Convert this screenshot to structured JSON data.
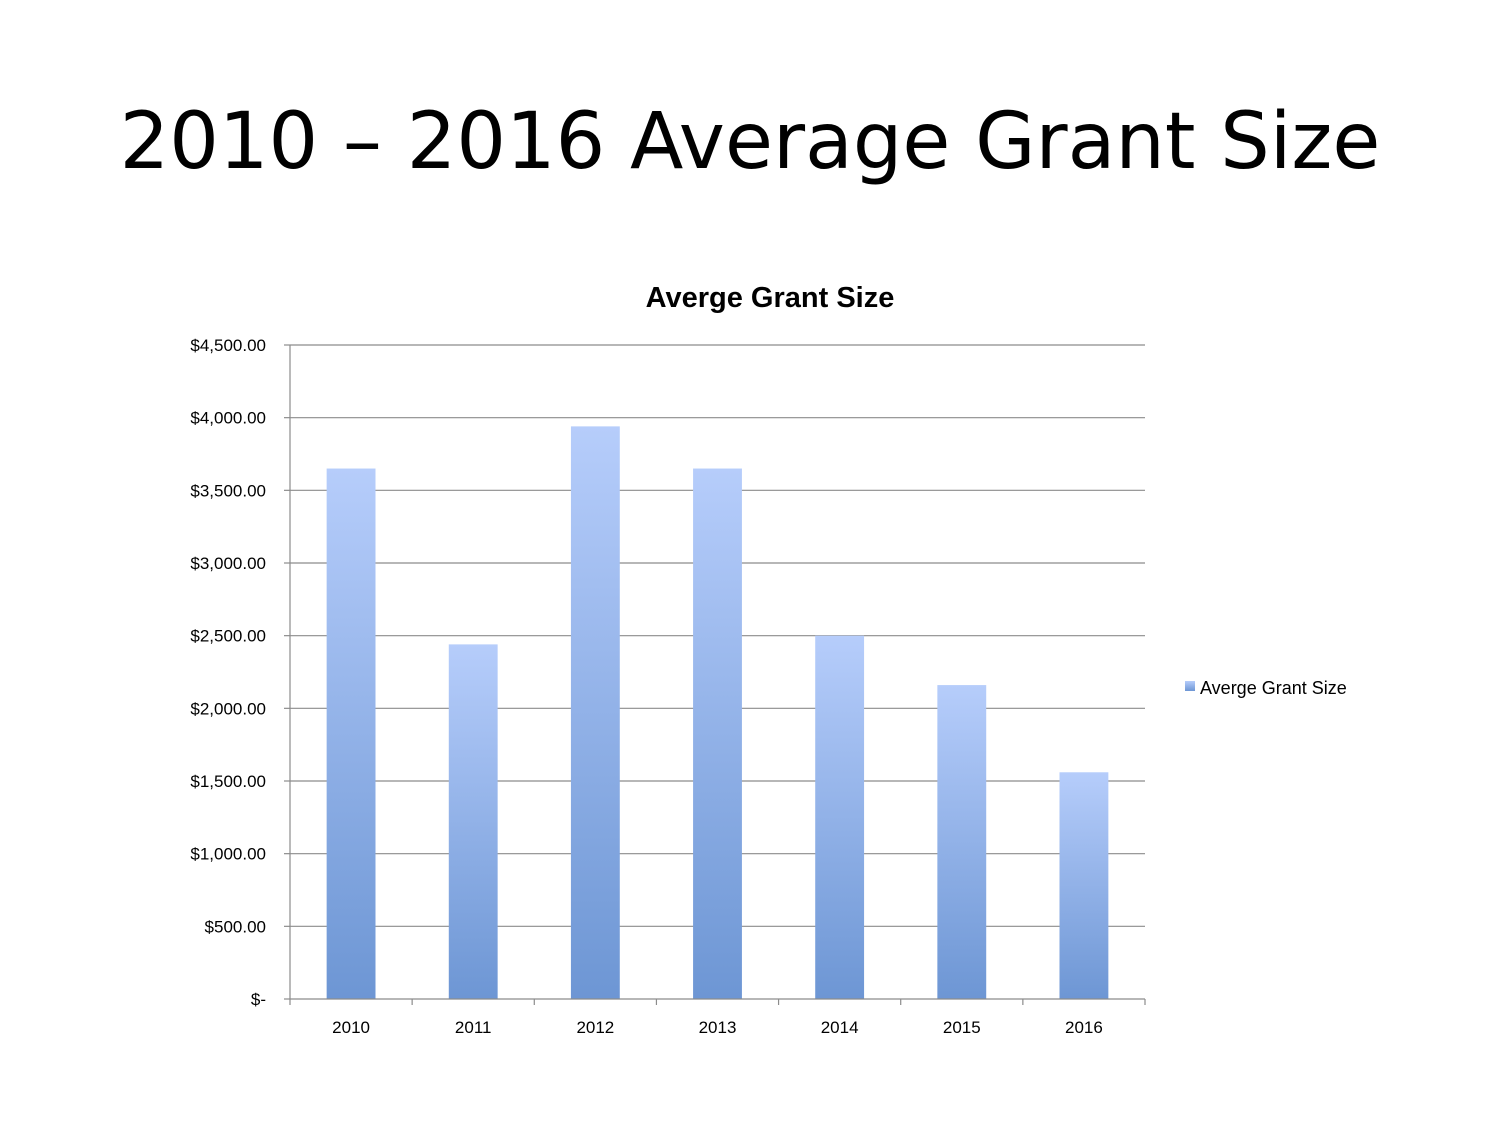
{
  "slide": {
    "title": "2010 – 2016 Average Grant Size"
  },
  "chart_data": {
    "type": "bar",
    "title": "Averge Grant Size",
    "xlabel": "",
    "ylabel": "",
    "categories": [
      "2010",
      "2011",
      "2012",
      "2013",
      "2014",
      "2015",
      "2016"
    ],
    "series": [
      {
        "name": "Averge Grant Size",
        "values": [
          3650,
          2440,
          3940,
          3650,
          2500,
          2160,
          1560
        ]
      }
    ],
    "ylim": [
      0,
      4500
    ],
    "yticks": [
      0,
      500,
      1000,
      1500,
      2000,
      2500,
      3000,
      3500,
      4000,
      4500
    ],
    "ytick_labels": [
      "$-",
      "$500.00",
      "$1,000.00",
      "$1,500.00",
      "$2,000.00",
      "$2,500.00",
      "$3,000.00",
      "$3,500.00",
      "$4,000.00",
      "$4,500.00"
    ],
    "grid": true,
    "legend_position": "right",
    "colors": {
      "bar_top": "#b6cdfb",
      "bar_bottom": "#6d96d4",
      "grid": "#8c8c8c",
      "axis": "#8c8c8c"
    }
  }
}
